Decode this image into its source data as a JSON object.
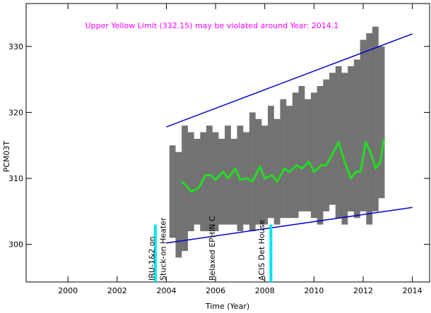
{
  "chart_data": {
    "type": "trend",
    "title": "Upper Yellow  Limit (332.15) may be violated around Year: 2014.1",
    "title_color": "#ff00ff",
    "x_label": "Time (Year)",
    "y_label": "PCM03T",
    "xlim": [
      1998.3,
      2014.7
    ],
    "ylim": [
      294.3,
      336.5
    ],
    "xticks": [
      2000,
      2002,
      2004,
      2006,
      2008,
      2010,
      2012,
      2014
    ],
    "yticks": [
      300,
      310,
      320,
      330
    ],
    "grid": false,
    "range": {
      "color": "#000000",
      "x": [
        2004.25,
        2004.5,
        2004.75,
        2005.0,
        2005.25,
        2005.5,
        2005.75,
        2006.0,
        2006.25,
        2006.5,
        2006.75,
        2007.0,
        2007.25,
        2007.5,
        2007.75,
        2008.0,
        2008.25,
        2008.5,
        2008.75,
        2009.0,
        2009.25,
        2009.5,
        2009.75,
        2010.0,
        2010.25,
        2010.5,
        2010.75,
        2011.0,
        2011.25,
        2011.5,
        2011.75,
        2012.0,
        2012.25,
        2012.5,
        2012.75
      ],
      "low": [
        301,
        298,
        299,
        302,
        303,
        302,
        302,
        302,
        303,
        303,
        303,
        302,
        303,
        302,
        303,
        303,
        304,
        303,
        304,
        304,
        304,
        305,
        305,
        304,
        303,
        305,
        306,
        304,
        303,
        305,
        304,
        305,
        303,
        305,
        307
      ],
      "high": [
        315,
        314,
        318,
        317,
        316,
        317,
        318,
        317,
        316,
        318,
        316,
        318,
        317,
        320,
        319,
        318,
        321,
        319,
        322,
        321,
        323,
        324,
        322,
        323,
        324,
        325,
        326,
        327,
        326,
        327,
        328,
        331,
        332,
        333,
        330
      ]
    },
    "smooth": {
      "color": "#22dd22",
      "x": [
        2004.6,
        2004.8,
        2005.0,
        2005.3,
        2005.6,
        2005.8,
        2006.0,
        2006.3,
        2006.5,
        2006.8,
        2007.0,
        2007.3,
        2007.5,
        2007.8,
        2008.0,
        2008.3,
        2008.5,
        2008.8,
        2009.0,
        2009.3,
        2009.5,
        2009.8,
        2010.0,
        2010.3,
        2010.5,
        2010.8,
        2011.0,
        2011.2,
        2011.5,
        2011.7,
        2011.9,
        2012.1,
        2012.3,
        2012.5,
        2012.7,
        2012.85
      ],
      "y": [
        309.5,
        309,
        308,
        308.5,
        310.5,
        310.5,
        309.8,
        311,
        310,
        311.5,
        309.8,
        310,
        309.5,
        311.8,
        310,
        310.5,
        309.5,
        311.5,
        311,
        312,
        311.5,
        312.5,
        311,
        312,
        312,
        314,
        315.5,
        313,
        310,
        311,
        311,
        315.5,
        314,
        311.5,
        312.5,
        316
      ]
    },
    "trend_upper": {
      "color": "#0000cc",
      "x": [
        2004,
        2014
      ],
      "y": [
        317.8,
        331.9
      ]
    },
    "trend_lower": {
      "color": "#0000cc",
      "x": [
        2004,
        2014
      ],
      "y": [
        300.2,
        305.6
      ]
    },
    "event_lines": {
      "color": "#00e5ee",
      "x": [
        2003.55,
        2008.25
      ],
      "y": [
        294.3,
        303
      ]
    },
    "annotations": [
      {
        "text": "IRU-1&2  on",
        "x": 2003.4
      },
      {
        "text": "Stuck-on Heater",
        "x": 2003.86
      },
      {
        "text": "Relaxed EPHIN C",
        "x": 2005.86
      },
      {
        "text": "ACIS Det House",
        "x": 2007.86
      }
    ]
  }
}
